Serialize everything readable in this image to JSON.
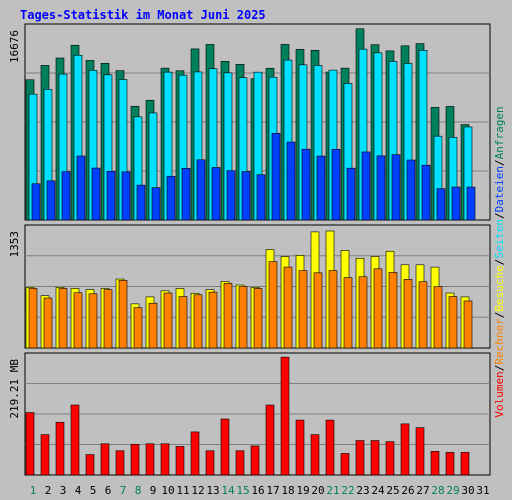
{
  "title": "Tages-Statistik im Monat Juni 2025",
  "colors": {
    "background": "#c0c0c0",
    "title": "#0000ff",
    "anfragen": "#00805c",
    "dateien": "#0040ff",
    "seiten": "#00e0ff",
    "besuche": "#ffff00",
    "rechner": "#ff8000",
    "volumen": "#ff0000",
    "weekend_label": "#00805c",
    "weekday_label": "#000000"
  },
  "chart_data": [
    {
      "type": "bar",
      "name": "hits-panel",
      "ymax_label": "16676",
      "ymax": 16676,
      "categories": [
        "1",
        "2",
        "3",
        "4",
        "5",
        "6",
        "7",
        "8",
        "9",
        "10",
        "11",
        "12",
        "13",
        "14",
        "15",
        "16",
        "17",
        "18",
        "19",
        "20",
        "21",
        "22",
        "23",
        "24",
        "25",
        "26",
        "27",
        "28",
        "29",
        "30",
        "31"
      ],
      "weekend_days": [
        "1",
        "7",
        "8",
        "14",
        "15",
        "21",
        "22",
        "28",
        "29"
      ],
      "series": [
        {
          "name": "Anfragen",
          "color_key": "anfragen",
          "values": [
            12180,
            13430,
            14070,
            15180,
            13860,
            13610,
            12970,
            9880,
            10400,
            13190,
            12960,
            14860,
            15250,
            13780,
            13520,
            12270,
            13180,
            15250,
            14820,
            14740,
            12850,
            13190,
            16610,
            15230,
            14690,
            15130,
            15320,
            9780,
            9860,
            8290,
            null
          ]
        },
        {
          "name": "Seiten",
          "color_key": "seiten",
          "values": [
            10930,
            11350,
            12670,
            14310,
            13000,
            12610,
            12200,
            8960,
            9300,
            12840,
            12580,
            12860,
            13140,
            12780,
            12360,
            12840,
            12400,
            13890,
            13480,
            13420,
            13020,
            11860,
            14840,
            14520,
            13770,
            13600,
            14740,
            7280,
            7180,
            8080,
            null
          ]
        },
        {
          "name": "Dateien",
          "color_key": "dateien",
          "values": [
            3150,
            3400,
            4200,
            5560,
            4510,
            4230,
            4180,
            3030,
            2810,
            3800,
            4490,
            5230,
            4560,
            4280,
            4210,
            3930,
            7530,
            6770,
            6150,
            5550,
            6140,
            4500,
            5910,
            5570,
            5670,
            5210,
            4760,
            2720,
            2860,
            2860,
            null
          ]
        }
      ]
    },
    {
      "type": "bar",
      "name": "visits-panel",
      "ymax_label": "1353",
      "ymax": 1353,
      "categories": [
        "1",
        "2",
        "3",
        "4",
        "5",
        "6",
        "7",
        "8",
        "9",
        "10",
        "11",
        "12",
        "13",
        "14",
        "15",
        "16",
        "17",
        "18",
        "19",
        "20",
        "21",
        "22",
        "23",
        "24",
        "25",
        "26",
        "27",
        "28",
        "29",
        "30",
        "31"
      ],
      "series": [
        {
          "name": "Besuche",
          "color_key": "besuche",
          "values": [
            690,
            595,
            690,
            677,
            664,
            677,
            784,
            502,
            581,
            650,
            677,
            622,
            664,
            756,
            716,
            690,
            1120,
            1040,
            1053,
            1320,
            1330,
            1110,
            1020,
            1040,
            1100,
            946,
            946,
            920,
            625,
            581,
            null
          ]
        },
        {
          "name": "Rechner",
          "color_key": "rechner",
          "values": [
            677,
            568,
            677,
            628,
            616,
            664,
            770,
            459,
            509,
            625,
            585,
            605,
            635,
            735,
            700,
            677,
            982,
            920,
            880,
            855,
            880,
            800,
            810,
            900,
            859,
            781,
            754,
            698,
            585,
            535,
            null
          ]
        }
      ]
    },
    {
      "type": "bar",
      "name": "volume-panel",
      "ymax_label": "219.21 MB",
      "ymax": 219.21,
      "categories": [
        "1",
        "2",
        "3",
        "4",
        "5",
        "6",
        "7",
        "8",
        "9",
        "10",
        "11",
        "12",
        "13",
        "14",
        "15",
        "16",
        "17",
        "18",
        "19",
        "20",
        "21",
        "22",
        "23",
        "24",
        "25",
        "26",
        "27",
        "28",
        "29",
        "30",
        "31"
      ],
      "series": [
        {
          "name": "Volumen",
          "color_key": "volumen",
          "values": [
            116,
            75,
            98,
            130,
            38,
            58,
            45,
            57,
            58,
            58,
            53,
            80,
            45,
            104,
            45,
            54,
            130,
            219,
            102,
            75,
            102,
            40,
            64,
            64,
            62,
            95,
            88,
            44,
            42,
            42,
            null
          ]
        }
      ]
    }
  ],
  "legend": {
    "anfragen": "Anfragen",
    "dateien": "Dateien",
    "seiten": "Seiten",
    "besuche": "Besuche",
    "rechner": "Rechner",
    "volumen": "Volumen",
    "separator": "/"
  }
}
